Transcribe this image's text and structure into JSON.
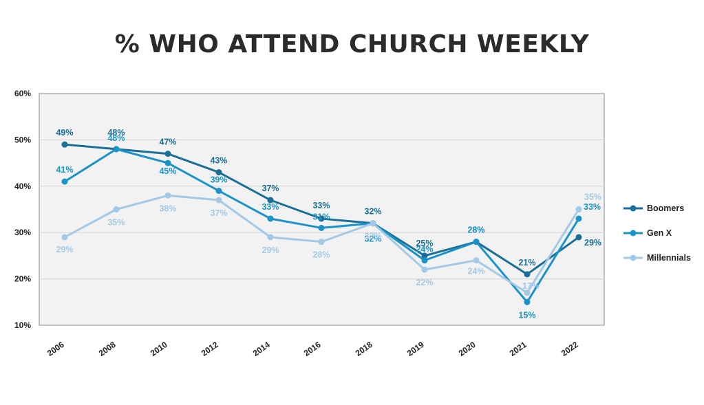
{
  "chart_data": {
    "type": "line",
    "title": "% WHO ATTEND CHURCH WEEKLY",
    "xlabel": "",
    "ylabel": "",
    "categories": [
      "2006",
      "2008",
      "2010",
      "2012",
      "2014",
      "2016",
      "2018",
      "2019",
      "2020",
      "2021",
      "2022"
    ],
    "ylim": [
      10,
      60
    ],
    "yticks": [
      10,
      20,
      30,
      40,
      50,
      60
    ],
    "ytick_labels": [
      "10%",
      "20%",
      "30%",
      "40%",
      "50%",
      "60%"
    ],
    "grid": true,
    "legend_position": "right",
    "series": [
      {
        "name": "Boomers",
        "color": "#1a6f96",
        "values": [
          49,
          48,
          47,
          43,
          37,
          33,
          32,
          25,
          28,
          21,
          29
        ],
        "labels": [
          "49%",
          "48%",
          "47%",
          "43%",
          "37%",
          "33%",
          "32%",
          "25%",
          "28%",
          "21%",
          "29%"
        ]
      },
      {
        "name": "Gen X",
        "color": "#1b93c6",
        "values": [
          41,
          48,
          45,
          39,
          33,
          31,
          32,
          24,
          28,
          15,
          33
        ],
        "labels": [
          "41%",
          "48%",
          "45%",
          "39%",
          "33%",
          "31%",
          "32%",
          "24%",
          "28%",
          "15%",
          "33%"
        ]
      },
      {
        "name": "Millennials",
        "color": "#a3c9e6",
        "values": [
          29,
          35,
          38,
          37,
          29,
          28,
          32,
          22,
          24,
          17,
          35
        ],
        "labels": [
          "29%",
          "35%",
          "38%",
          "37%",
          "29%",
          "28%",
          "32%",
          "22%",
          "24%",
          "17%",
          "35%"
        ]
      }
    ]
  }
}
